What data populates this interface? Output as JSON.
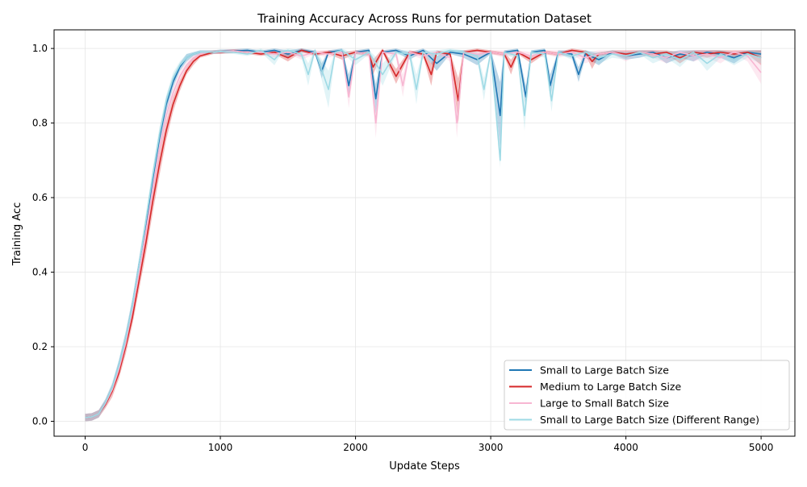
{
  "chart_data": {
    "type": "line",
    "title": "Training Accuracy Across Runs for permutation Dataset",
    "xlabel": "Update Steps",
    "ylabel": "Training Acc",
    "xlim": [
      -230,
      5250
    ],
    "ylim": [
      -0.04,
      1.05
    ],
    "xticks": [
      "0",
      "1000",
      "2000",
      "3000",
      "4000",
      "5000"
    ],
    "yticks": [
      "0.0",
      "0.2",
      "0.4",
      "0.6",
      "0.8",
      "1.0"
    ],
    "grid": true,
    "legend_position": "lower-right",
    "series": [
      {
        "name": "Small to Large Batch Size",
        "color": "#1f77b4",
        "band_color": "#1f77b4",
        "x": [
          0,
          50,
          100,
          150,
          200,
          250,
          300,
          350,
          400,
          450,
          500,
          550,
          600,
          650,
          700,
          750,
          800,
          850,
          900,
          950,
          1000,
          1100,
          1200,
          1300,
          1400,
          1500,
          1600,
          1700,
          1750,
          1800,
          1900,
          1950,
          2000,
          2100,
          2150,
          2200,
          2300,
          2400,
          2500,
          2600,
          2700,
          2800,
          2900,
          3000,
          3070,
          3100,
          3200,
          3260,
          3300,
          3400,
          3440,
          3500,
          3600,
          3650,
          3700,
          3800,
          3900,
          4000,
          4100,
          4200,
          4300,
          4400,
          4500,
          4600,
          4700,
          4800,
          4900,
          5000
        ],
        "y": [
          0.01,
          0.012,
          0.02,
          0.05,
          0.09,
          0.15,
          0.22,
          0.31,
          0.42,
          0.53,
          0.65,
          0.76,
          0.85,
          0.91,
          0.95,
          0.975,
          0.985,
          0.99,
          0.99,
          0.99,
          0.992,
          0.993,
          0.995,
          0.99,
          0.995,
          0.985,
          0.995,
          0.99,
          0.94,
          0.99,
          0.995,
          0.9,
          0.99,
          0.995,
          0.865,
          0.99,
          0.995,
          0.98,
          0.995,
          0.96,
          0.99,
          0.985,
          0.97,
          0.99,
          0.82,
          0.99,
          0.995,
          0.87,
          0.99,
          0.995,
          0.9,
          0.99,
          0.985,
          0.93,
          0.985,
          0.97,
          0.99,
          0.98,
          0.985,
          0.99,
          0.975,
          0.985,
          0.98,
          0.99,
          0.985,
          0.975,
          0.99,
          0.985
        ],
        "band": [
          0.01,
          0.01,
          0.01,
          0.01,
          0.01,
          0.015,
          0.02,
          0.02,
          0.02,
          0.02,
          0.02,
          0.02,
          0.02,
          0.015,
          0.01,
          0.01,
          0.005,
          0.005,
          0.005,
          0.005,
          0.005,
          0.005,
          0.005,
          0.005,
          0.005,
          0.01,
          0.005,
          0.005,
          0.02,
          0.005,
          0.005,
          0.03,
          0.005,
          0.005,
          0.04,
          0.005,
          0.005,
          0.01,
          0.005,
          0.02,
          0.005,
          0.01,
          0.015,
          0.005,
          0.09,
          0.005,
          0.005,
          0.03,
          0.005,
          0.005,
          0.03,
          0.005,
          0.01,
          0.02,
          0.01,
          0.015,
          0.005,
          0.01,
          0.01,
          0.005,
          0.015,
          0.01,
          0.015,
          0.005,
          0.01,
          0.015,
          0.005,
          0.01
        ]
      },
      {
        "name": "Medium to Large Batch Size",
        "color": "#d62728",
        "band_color": "#d62728",
        "x": [
          0,
          50,
          100,
          150,
          200,
          250,
          300,
          350,
          400,
          450,
          500,
          550,
          600,
          650,
          700,
          750,
          800,
          850,
          900,
          950,
          1000,
          1100,
          1200,
          1300,
          1400,
          1500,
          1600,
          1700,
          1800,
          1900,
          2000,
          2100,
          2130,
          2200,
          2300,
          2400,
          2500,
          2560,
          2600,
          2700,
          2760,
          2800,
          2900,
          3000,
          3100,
          3150,
          3200,
          3300,
          3400,
          3500,
          3600,
          3700,
          3750,
          3800,
          3900,
          4000,
          4100,
          4200,
          4300,
          4400,
          4500,
          4600,
          4700,
          4800,
          4900,
          5000
        ],
        "y": [
          0.01,
          0.012,
          0.02,
          0.045,
          0.08,
          0.13,
          0.2,
          0.28,
          0.38,
          0.48,
          0.59,
          0.69,
          0.78,
          0.85,
          0.9,
          0.94,
          0.965,
          0.98,
          0.985,
          0.99,
          0.99,
          0.993,
          0.99,
          0.985,
          0.99,
          0.975,
          0.995,
          0.985,
          0.99,
          0.98,
          0.99,
          0.985,
          0.95,
          0.995,
          0.925,
          0.99,
          0.985,
          0.93,
          0.99,
          0.985,
          0.86,
          0.99,
          0.995,
          0.99,
          0.985,
          0.95,
          0.99,
          0.97,
          0.99,
          0.985,
          0.995,
          0.99,
          0.965,
          0.985,
          0.99,
          0.985,
          0.99,
          0.985,
          0.99,
          0.975,
          0.99,
          0.985,
          0.99,
          0.985,
          0.99,
          0.975
        ],
        "band": [
          0.01,
          0.01,
          0.01,
          0.01,
          0.015,
          0.015,
          0.02,
          0.02,
          0.025,
          0.03,
          0.03,
          0.03,
          0.025,
          0.02,
          0.015,
          0.01,
          0.01,
          0.005,
          0.005,
          0.005,
          0.005,
          0.005,
          0.005,
          0.005,
          0.005,
          0.01,
          0.005,
          0.005,
          0.005,
          0.01,
          0.005,
          0.005,
          0.02,
          0.005,
          0.02,
          0.005,
          0.005,
          0.03,
          0.005,
          0.005,
          0.06,
          0.005,
          0.005,
          0.005,
          0.005,
          0.02,
          0.005,
          0.01,
          0.005,
          0.005,
          0.005,
          0.005,
          0.02,
          0.005,
          0.005,
          0.01,
          0.005,
          0.01,
          0.005,
          0.015,
          0.005,
          0.01,
          0.005,
          0.01,
          0.005,
          0.02
        ]
      },
      {
        "name": "Large to Small Batch Size",
        "color": "#f7b6d2",
        "band_color": "#f7b6d2",
        "x": [
          0,
          50,
          100,
          150,
          200,
          250,
          300,
          350,
          400,
          450,
          500,
          550,
          600,
          650,
          700,
          750,
          800,
          850,
          900,
          950,
          1000,
          1100,
          1200,
          1300,
          1400,
          1500,
          1600,
          1700,
          1800,
          1900,
          1950,
          2000,
          2100,
          2150,
          2200,
          2300,
          2350,
          2400,
          2500,
          2600,
          2700,
          2750,
          2800,
          2900,
          3000,
          3100,
          3200,
          3300,
          3400,
          3500,
          3600,
          3700,
          3800,
          3900,
          4000,
          4100,
          4200,
          4300,
          4400,
          4500,
          4600,
          4700,
          4800,
          4900,
          5000
        ],
        "y": [
          0.01,
          0.012,
          0.02,
          0.048,
          0.085,
          0.14,
          0.21,
          0.3,
          0.4,
          0.51,
          0.62,
          0.73,
          0.82,
          0.88,
          0.925,
          0.955,
          0.975,
          0.985,
          0.99,
          0.99,
          0.991,
          0.993,
          0.99,
          0.99,
          0.985,
          0.99,
          0.98,
          0.99,
          0.985,
          0.99,
          0.87,
          0.99,
          0.985,
          0.8,
          0.99,
          0.985,
          0.9,
          0.99,
          0.98,
          0.99,
          0.975,
          0.8,
          0.99,
          0.985,
          0.99,
          0.985,
          0.99,
          0.98,
          0.99,
          0.985,
          0.99,
          0.975,
          0.985,
          0.99,
          0.98,
          0.99,
          0.985,
          0.975,
          0.99,
          0.98,
          0.985,
          0.975,
          0.99,
          0.98,
          0.935
        ],
        "band": [
          0.01,
          0.01,
          0.01,
          0.01,
          0.015,
          0.015,
          0.02,
          0.02,
          0.02,
          0.025,
          0.025,
          0.025,
          0.02,
          0.015,
          0.015,
          0.01,
          0.01,
          0.005,
          0.005,
          0.005,
          0.005,
          0.005,
          0.005,
          0.005,
          0.01,
          0.005,
          0.01,
          0.005,
          0.01,
          0.005,
          0.03,
          0.005,
          0.01,
          0.04,
          0.005,
          0.01,
          0.03,
          0.005,
          0.01,
          0.005,
          0.01,
          0.04,
          0.005,
          0.01,
          0.005,
          0.01,
          0.005,
          0.01,
          0.005,
          0.01,
          0.005,
          0.015,
          0.01,
          0.005,
          0.015,
          0.005,
          0.01,
          0.015,
          0.005,
          0.015,
          0.01,
          0.015,
          0.005,
          0.015,
          0.03
        ]
      },
      {
        "name": "Small to Large Batch Size (Different Range)",
        "color": "#9edae5",
        "band_color": "#9edae5",
        "x": [
          0,
          50,
          100,
          150,
          200,
          250,
          300,
          350,
          400,
          450,
          500,
          550,
          600,
          650,
          700,
          750,
          800,
          850,
          900,
          950,
          1000,
          1100,
          1200,
          1300,
          1400,
          1450,
          1500,
          1600,
          1650,
          1700,
          1800,
          1850,
          1900,
          2000,
          2100,
          2200,
          2300,
          2400,
          2450,
          2500,
          2600,
          2700,
          2800,
          2900,
          2950,
          3000,
          3070,
          3100,
          3200,
          3250,
          3300,
          3400,
          3450,
          3500,
          3600,
          3700,
          3800,
          3900,
          4000,
          4100,
          4200,
          4300,
          4400,
          4500,
          4600,
          4700,
          4800,
          4900,
          5000
        ],
        "y": [
          0.01,
          0.012,
          0.02,
          0.05,
          0.09,
          0.15,
          0.22,
          0.31,
          0.42,
          0.54,
          0.66,
          0.77,
          0.86,
          0.92,
          0.955,
          0.975,
          0.985,
          0.99,
          0.99,
          0.99,
          0.992,
          0.99,
          0.985,
          0.995,
          0.97,
          0.99,
          0.995,
          0.985,
          0.93,
          0.995,
          0.89,
          0.99,
          0.995,
          0.97,
          0.99,
          0.93,
          0.99,
          0.985,
          0.89,
          0.99,
          0.985,
          0.995,
          0.99,
          0.98,
          0.89,
          0.99,
          0.7,
          0.99,
          0.98,
          0.82,
          0.99,
          0.985,
          0.86,
          0.99,
          0.98,
          0.99,
          0.975,
          0.985,
          0.98,
          0.99,
          0.975,
          0.985,
          0.97,
          0.99,
          0.96,
          0.985,
          0.97,
          0.985,
          0.975
        ],
        "band": [
          0.01,
          0.01,
          0.01,
          0.01,
          0.015,
          0.015,
          0.02,
          0.02,
          0.02,
          0.02,
          0.02,
          0.02,
          0.015,
          0.015,
          0.01,
          0.01,
          0.005,
          0.005,
          0.005,
          0.005,
          0.005,
          0.005,
          0.005,
          0.005,
          0.015,
          0.005,
          0.005,
          0.01,
          0.03,
          0.005,
          0.05,
          0.005,
          0.005,
          0.015,
          0.005,
          0.03,
          0.005,
          0.01,
          0.04,
          0.005,
          0.01,
          0.005,
          0.005,
          0.01,
          0.03,
          0.005,
          0.02,
          0.005,
          0.01,
          0.04,
          0.005,
          0.01,
          0.03,
          0.005,
          0.01,
          0.005,
          0.015,
          0.01,
          0.01,
          0.005,
          0.015,
          0.01,
          0.02,
          0.005,
          0.02,
          0.01,
          0.015,
          0.01,
          0.015
        ]
      }
    ]
  }
}
